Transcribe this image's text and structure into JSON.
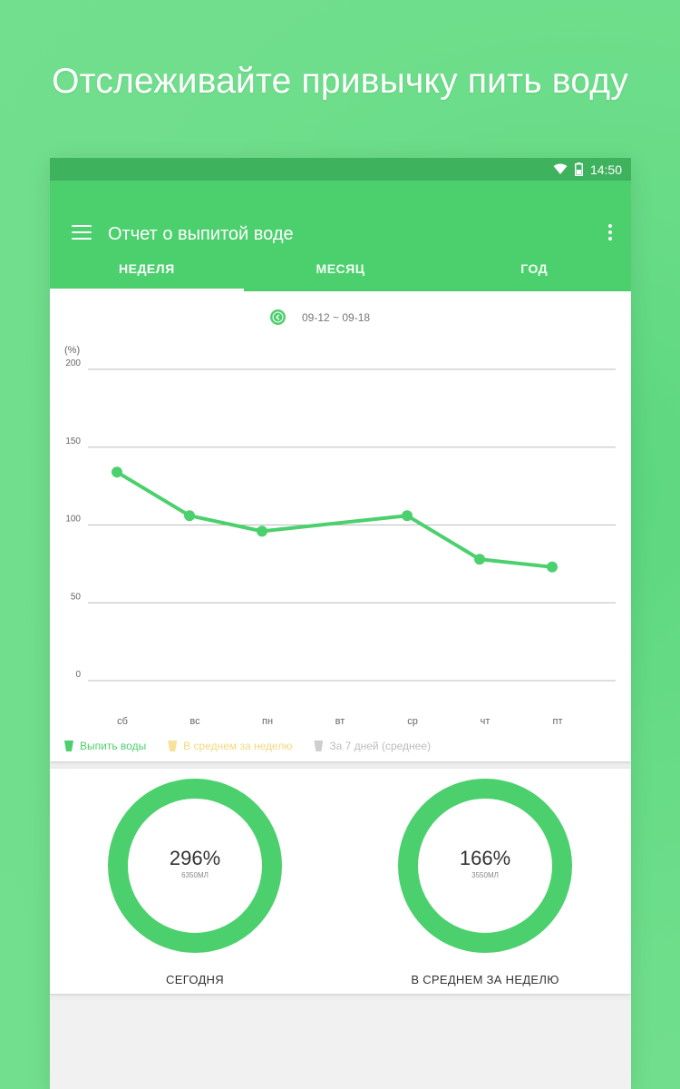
{
  "promo": {
    "headline": "Отслеживайте привычку пить воду"
  },
  "status_bar": {
    "time": "14:50",
    "icons": [
      "wifi-icon",
      "battery-icon"
    ]
  },
  "app_bar": {
    "title": "Отчет о выпитой воде"
  },
  "tabs": [
    {
      "label": "НЕДЕЛЯ",
      "active": true
    },
    {
      "label": "МЕСЯЦ",
      "active": false
    },
    {
      "label": "ГОД",
      "active": false
    }
  ],
  "report": {
    "date_range": "09-12 ~ 09-18",
    "legend": [
      {
        "label": "Выпить воды",
        "color": "#4cd06d"
      },
      {
        "label": "В среднем за неделю",
        "color": "#f5e39a"
      },
      {
        "label": "За 7 дней (среднее)",
        "color": "#c8c8c8"
      }
    ]
  },
  "chart_data": {
    "type": "line",
    "unit_label": "(%)",
    "categories": [
      "сб",
      "вс",
      "пн",
      "вт",
      "ср",
      "чт",
      "пт"
    ],
    "series": [
      {
        "name": "Выпить воды",
        "color": "#4cd06d",
        "values": [
          134,
          106,
          96,
          null,
          106,
          78,
          73
        ]
      }
    ],
    "yticks": [
      0,
      50,
      100,
      150,
      200
    ],
    "ylim": [
      0,
      200
    ],
    "grid": true
  },
  "rings": {
    "today": {
      "percent_text": "296%",
      "amount": "6350МЛ",
      "label": "СЕГОДНЯ"
    },
    "week_avg": {
      "percent_text": "166%",
      "amount": "3550МЛ",
      "label": "В СРЕДНЕМ ЗА НЕДЕЛЮ"
    },
    "color": "#4cd06d"
  }
}
